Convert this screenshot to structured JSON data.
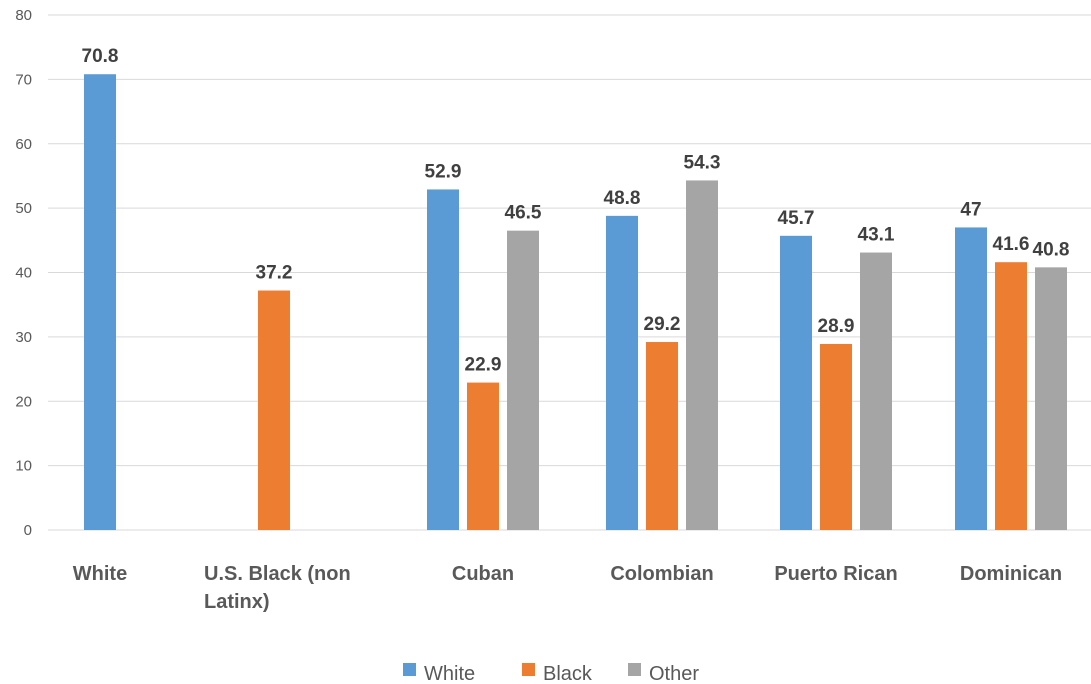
{
  "chart_data": {
    "type": "bar",
    "title": "",
    "xlabel": "",
    "ylabel": "",
    "ylim": [
      0,
      80
    ],
    "yticks": [
      0,
      10,
      20,
      30,
      40,
      50,
      60,
      70,
      80
    ],
    "grid": true,
    "legend_position": "bottom",
    "categories": [
      [
        "White"
      ],
      [
        "U.S. Black (non",
        "Latinx)"
      ],
      [
        "Cuban"
      ],
      [
        "Colombian"
      ],
      [
        "Puerto Rican"
      ],
      [
        "Dominican"
      ]
    ],
    "series": [
      {
        "name": "White",
        "color": "#5b9bd5",
        "values": [
          70.8,
          null,
          52.9,
          48.8,
          45.7,
          47
        ]
      },
      {
        "name": "Black",
        "color": "#ed7d31",
        "values": [
          null,
          37.2,
          22.9,
          29.2,
          28.9,
          41.6
        ]
      },
      {
        "name": "Other",
        "color": "#a5a5a5",
        "values": [
          null,
          null,
          46.5,
          54.3,
          43.1,
          40.8
        ]
      }
    ]
  }
}
